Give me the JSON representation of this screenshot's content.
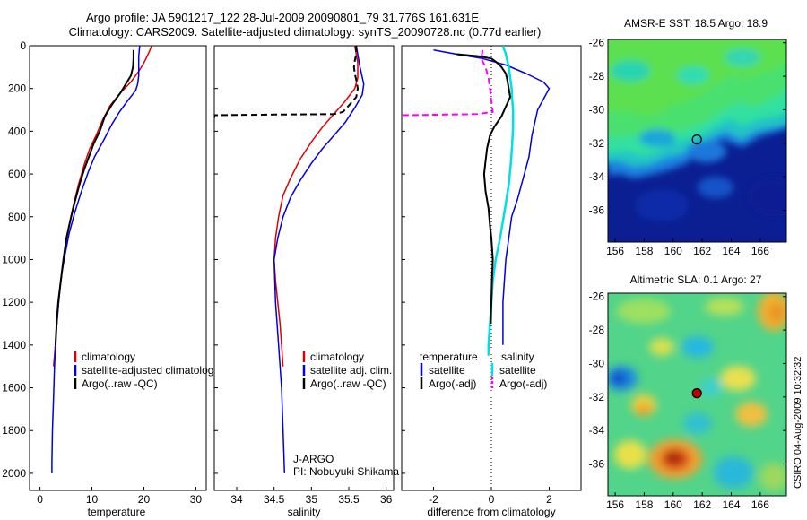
{
  "header": {
    "title_line1": "Argo profile: JA 5901217_122 28-Jul-2009 20090801_79 31.776S 161.631E",
    "title_line2": "Climatology: CARS2009. Satellite-adjusted climatology: synTS_20090728.nc (0.77d earlier)"
  },
  "side_label": "CSIRO 04-Aug-2009 10:32:32",
  "colors": {
    "clim": "#e00000",
    "sat": "#0000e0",
    "argo": "#000000",
    "cyan": "#00e0e0",
    "magenta": "#ff00ff"
  },
  "chart_data": [
    {
      "type": "line",
      "id": "temperature",
      "xlabel": "temperature",
      "xlim": [
        -2,
        32
      ],
      "ylim": [
        0,
        2080
      ],
      "xticks": [
        0,
        10,
        20,
        30
      ],
      "xtick_labels": [
        "0",
        "10",
        "20",
        "30"
      ],
      "yticks": [
        0,
        200,
        400,
        600,
        800,
        1000,
        1200,
        1400,
        1600,
        1800,
        2000
      ],
      "ytick_labels": [
        "0",
        "200",
        "400",
        "600",
        "800",
        "1000",
        "1200",
        "1400",
        "1600",
        "1800",
        "2000"
      ],
      "legend": {
        "placement": "bottom-right",
        "entries": [
          {
            "label": "climatology",
            "color": "#e00000",
            "style": "solid"
          },
          {
            "label": "satellite-adjusted climatology",
            "color": "#0000e0",
            "style": "solid"
          },
          {
            "label": "Argo(..raw -QC)",
            "color": "#000000",
            "style": "solid"
          }
        ]
      },
      "series": [
        {
          "name": "climatology",
          "color": "#e00000",
          "style": "solid",
          "width": 1.5,
          "points": [
            [
              21.5,
              0
            ],
            [
              21.0,
              30
            ],
            [
              20.0,
              80
            ],
            [
              19.0,
              120
            ],
            [
              17.5,
              170
            ],
            [
              15.5,
              220
            ],
            [
              13.5,
              280
            ],
            [
              12.0,
              350
            ],
            [
              10.8,
              420
            ],
            [
              9.6,
              480
            ],
            [
              8.6,
              550
            ],
            [
              7.4,
              650
            ],
            [
              6.4,
              750
            ],
            [
              5.5,
              850
            ],
            [
              4.8,
              950
            ],
            [
              4.3,
              1050
            ],
            [
              3.8,
              1150
            ],
            [
              3.4,
              1250
            ],
            [
              3.1,
              1350
            ],
            [
              2.8,
              1450
            ],
            [
              2.6,
              1500
            ]
          ]
        },
        {
          "name": "satellite-adjusted climatology",
          "color": "#0000e0",
          "style": "solid",
          "width": 1.5,
          "points": [
            [
              19.2,
              0
            ],
            [
              19.0,
              50
            ],
            [
              19.0,
              100
            ],
            [
              19.0,
              140
            ],
            [
              18.8,
              180
            ],
            [
              18.4,
              210
            ],
            [
              16.8,
              260
            ],
            [
              15.3,
              310
            ],
            [
              13.8,
              370
            ],
            [
              12.3,
              440
            ],
            [
              10.5,
              520
            ],
            [
              9.3,
              590
            ],
            [
              8.0,
              680
            ],
            [
              6.7,
              780
            ],
            [
              5.6,
              880
            ],
            [
              4.8,
              980
            ],
            [
              4.1,
              1080
            ],
            [
              3.6,
              1200
            ],
            [
              3.1,
              1350
            ],
            [
              2.8,
              1500
            ],
            [
              2.6,
              1650
            ],
            [
              2.4,
              1800
            ],
            [
              2.3,
              1950
            ],
            [
              2.3,
              2000
            ]
          ]
        },
        {
          "name": "Argo(..raw -QC)",
          "color": "#000000",
          "style": "solid",
          "width": 2,
          "points": [
            [
              18.0,
              20
            ],
            [
              18.0,
              60
            ],
            [
              17.9,
              100
            ],
            [
              17.5,
              140
            ],
            [
              16.5,
              180
            ],
            [
              15.5,
              220
            ],
            [
              14.0,
              270
            ],
            [
              12.5,
              330
            ],
            [
              11.5,
              400
            ],
            [
              10.3,
              460
            ],
            [
              9.4,
              520
            ],
            [
              8.5,
              580
            ],
            [
              7.6,
              650
            ],
            [
              6.7,
              730
            ],
            [
              5.9,
              810
            ],
            [
              5.1,
              900
            ],
            [
              4.5,
              1000
            ],
            [
              4.0,
              1100
            ],
            [
              3.5,
              1200
            ],
            [
              3.2,
              1300
            ],
            [
              3.0,
              1400
            ]
          ]
        }
      ]
    },
    {
      "type": "line",
      "id": "salinity",
      "xlabel": "salinity",
      "xlim": [
        33.7,
        36.1
      ],
      "ylim": [
        0,
        2080
      ],
      "xticks": [
        34,
        34.5,
        35,
        35.5,
        36
      ],
      "xtick_labels": [
        "34",
        "34.5",
        "35",
        "35.5",
        "36"
      ],
      "annotation": [
        "J-ARGO",
        "PI: Nobuyuki Shikama"
      ],
      "legend": {
        "placement": "bottom-right",
        "entries": [
          {
            "label": "climatology",
            "color": "#e00000",
            "style": "solid"
          },
          {
            "label": "satellite adj. clim.",
            "color": "#0000e0",
            "style": "solid"
          },
          {
            "label": "Argo(..raw -QC)",
            "color": "#000000",
            "style": "solid"
          }
        ]
      },
      "series": [
        {
          "name": "climatology",
          "color": "#e00000",
          "style": "solid",
          "width": 1.5,
          "points": [
            [
              35.58,
              0
            ],
            [
              35.62,
              80
            ],
            [
              35.62,
              150
            ],
            [
              35.58,
              200
            ],
            [
              35.45,
              260
            ],
            [
              35.3,
              320
            ],
            [
              35.15,
              380
            ],
            [
              35.0,
              450
            ],
            [
              34.85,
              530
            ],
            [
              34.72,
              620
            ],
            [
              34.62,
              700
            ],
            [
              34.56,
              800
            ],
            [
              34.52,
              900
            ],
            [
              34.5,
              1000
            ],
            [
              34.52,
              1100
            ],
            [
              34.55,
              1200
            ],
            [
              34.58,
              1300
            ],
            [
              34.6,
              1400
            ],
            [
              34.62,
              1500
            ]
          ]
        },
        {
          "name": "satellite adj. clim.",
          "color": "#0000e0",
          "style": "solid",
          "width": 1.5,
          "points": [
            [
              35.6,
              0
            ],
            [
              35.65,
              100
            ],
            [
              35.7,
              180
            ],
            [
              35.68,
              230
            ],
            [
              35.58,
              290
            ],
            [
              35.45,
              360
            ],
            [
              35.3,
              420
            ],
            [
              35.15,
              480
            ],
            [
              35.0,
              550
            ],
            [
              34.85,
              630
            ],
            [
              34.72,
              710
            ],
            [
              34.62,
              800
            ],
            [
              34.55,
              900
            ],
            [
              34.5,
              1000
            ],
            [
              34.52,
              1200
            ],
            [
              34.56,
              1400
            ],
            [
              34.6,
              1600
            ],
            [
              34.62,
              1800
            ],
            [
              34.64,
              2000
            ]
          ]
        },
        {
          "name": "Argo(..raw -QC)",
          "color": "#000000",
          "style": "dashed",
          "width": 2,
          "points": [
            [
              35.6,
              0
            ],
            [
              35.6,
              40
            ],
            [
              35.58,
              70
            ],
            [
              35.57,
              100
            ],
            [
              35.58,
              130
            ],
            [
              35.6,
              160
            ],
            [
              35.62,
              200
            ],
            [
              35.6,
              240
            ],
            [
              35.5,
              280
            ],
            [
              35.42,
              310
            ],
            [
              35.3,
              320
            ],
            [
              34.5,
              322
            ],
            [
              33.7,
              325
            ],
            [
              33.7,
              340
            ]
          ]
        }
      ]
    },
    {
      "type": "line",
      "id": "difference",
      "xlabel": "difference from climatology",
      "xlim": [
        -3.1,
        3.1
      ],
      "ylim": [
        0,
        2080
      ],
      "xticks": [
        -2,
        0,
        2
      ],
      "xtick_labels": [
        "-2",
        "0",
        "2"
      ],
      "legend": {
        "placement": "bottom",
        "entries": [
          {
            "label": "temperature",
            "color": "",
            "style": "header"
          },
          {
            "label": "salinity",
            "color": "",
            "style": "header"
          },
          {
            "label": "satellite",
            "color": "#0000e0",
            "style": "solid"
          },
          {
            "label": "satellite",
            "color": "#00e0e0",
            "style": "solid"
          },
          {
            "label": "Argo(-adj)",
            "color": "#000000",
            "style": "solid"
          },
          {
            "label": "Argo(-adj)",
            "color": "#ff00ff",
            "style": "dashed"
          }
        ]
      },
      "series": [
        {
          "name": "temperature satellite",
          "color": "#0000e0",
          "style": "solid",
          "width": 1.5,
          "points": [
            [
              -2.0,
              20
            ],
            [
              -1.2,
              40
            ],
            [
              -0.3,
              60
            ],
            [
              0.5,
              90
            ],
            [
              1.2,
              130
            ],
            [
              1.8,
              170
            ],
            [
              2.0,
              200
            ],
            [
              1.8,
              250
            ],
            [
              1.6,
              300
            ],
            [
              1.5,
              360
            ],
            [
              1.4,
              420
            ],
            [
              1.3,
              520
            ],
            [
              1.1,
              620
            ],
            [
              0.9,
              720
            ],
            [
              0.7,
              800
            ],
            [
              0.6,
              900
            ],
            [
              0.5,
              1000
            ],
            [
              0.45,
              1100
            ],
            [
              0.4,
              1200
            ],
            [
              0.4,
              1300
            ],
            [
              0.4,
              1400
            ]
          ]
        },
        {
          "name": "salinity satellite",
          "color": "#00e0e0",
          "style": "solid",
          "width": 2.5,
          "points": [
            [
              0.4,
              0
            ],
            [
              0.5,
              40
            ],
            [
              0.6,
              100
            ],
            [
              0.65,
              150
            ],
            [
              0.7,
              200
            ],
            [
              0.72,
              250
            ],
            [
              0.75,
              300
            ],
            [
              0.75,
              380
            ],
            [
              0.72,
              460
            ],
            [
              0.68,
              540
            ],
            [
              0.6,
              650
            ],
            [
              0.45,
              780
            ],
            [
              0.3,
              900
            ],
            [
              0.15,
              1000
            ],
            [
              0.05,
              1100
            ],
            [
              0.0,
              1200
            ],
            [
              -0.05,
              1300
            ],
            [
              -0.1,
              1400
            ],
            [
              -0.1,
              1450
            ]
          ]
        },
        {
          "name": "temperature Argo(-adj)",
          "color": "#000000",
          "style": "solid",
          "width": 2,
          "points": [
            [
              -1.2,
              40
            ],
            [
              -0.4,
              50
            ],
            [
              0.0,
              60
            ],
            [
              0.2,
              80
            ],
            [
              0.35,
              100
            ],
            [
              0.5,
              130
            ],
            [
              0.55,
              160
            ],
            [
              0.6,
              200
            ],
            [
              0.65,
              240
            ],
            [
              0.55,
              270
            ],
            [
              0.45,
              300
            ],
            [
              0.35,
              330
            ],
            [
              0.1,
              380
            ],
            [
              -0.05,
              420
            ],
            [
              -0.15,
              480
            ],
            [
              -0.2,
              540
            ],
            [
              -0.25,
              600
            ],
            [
              -0.2,
              680
            ],
            [
              -0.1,
              760
            ],
            [
              -0.05,
              840
            ],
            [
              0.0,
              900
            ],
            [
              0.05,
              1000
            ],
            [
              0.02,
              1100
            ],
            [
              0.0,
              1200
            ],
            [
              -0.02,
              1300
            ]
          ]
        },
        {
          "name": "salinity Argo(-adj)",
          "color": "#ff00ff",
          "style": "dashed",
          "width": 2,
          "points": [
            [
              -0.3,
              20
            ],
            [
              -0.35,
              60
            ],
            [
              -0.2,
              100
            ],
            [
              -0.1,
              150
            ],
            [
              -0.05,
              200
            ],
            [
              0.0,
              260
            ],
            [
              0.05,
              310
            ],
            [
              -0.5,
              320
            ],
            [
              -1.5,
              322
            ],
            [
              -3.1,
              325
            ]
          ]
        }
      ]
    },
    {
      "type": "heatmap",
      "id": "sst-map",
      "title": "AMSR-E SST: 18.5 Argo: 18.9",
      "xlim": [
        155.5,
        167.8
      ],
      "ylim": [
        -37.9,
        -25.8
      ],
      "xticks": [
        156,
        158,
        160,
        162,
        164,
        166
      ],
      "xtick_labels": [
        "156",
        "158",
        "160",
        "162",
        "164",
        "166"
      ],
      "yticks": [
        -26,
        -28,
        -30,
        -32,
        -34,
        -36
      ],
      "ytick_labels": [
        "-26",
        "-28",
        "-30",
        "-32",
        "-34",
        "-36"
      ],
      "marker": {
        "lon": 161.631,
        "lat": -31.776,
        "fill": "none"
      }
    },
    {
      "type": "heatmap",
      "id": "sla-map",
      "title": "Altimetric SLA: 0.1 Argo: 27",
      "xlim": [
        155.5,
        167.8
      ],
      "ylim": [
        -37.9,
        -25.8
      ],
      "xticks": [
        156,
        158,
        160,
        162,
        164,
        166
      ],
      "xtick_labels": [
        "156",
        "158",
        "160",
        "162",
        "164",
        "166"
      ],
      "yticks": [
        -26,
        -28,
        -30,
        -32,
        -34,
        -36
      ],
      "ytick_labels": [
        "-26",
        "-28",
        "-30",
        "-32",
        "-34",
        "-36"
      ],
      "marker": {
        "lon": 161.631,
        "lat": -31.776,
        "fill": "#c00000"
      }
    }
  ]
}
